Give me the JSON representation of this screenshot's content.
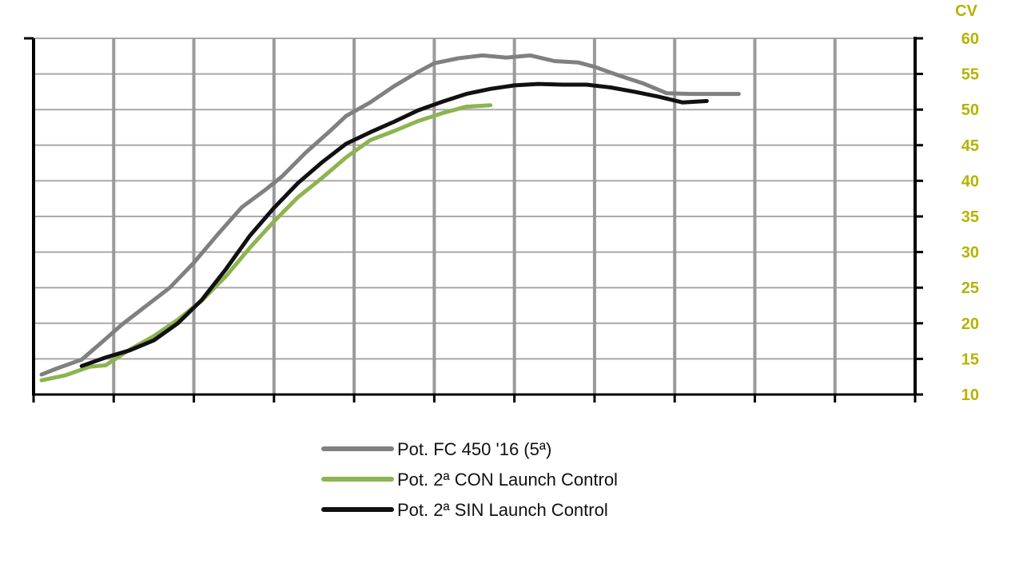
{
  "chart_data": {
    "type": "line",
    "title": "",
    "xlabel": "",
    "ylabel": "CV",
    "y_axis_side": "right",
    "ylim": [
      10,
      60
    ],
    "xlim": [
      0,
      11
    ],
    "yticks": [
      10,
      15,
      20,
      25,
      30,
      35,
      40,
      45,
      50,
      55,
      60
    ],
    "x_gridlines": 11,
    "grid": true,
    "legend_position": "bottom-center",
    "tick_label_color": "#b5b300",
    "series": [
      {
        "name": "Pot. FC 450 '16 (5ª)",
        "color": "#808080",
        "x": [
          0.1,
          0.3,
          0.6,
          0.9,
          1.1,
          1.4,
          1.7,
          2.0,
          2.3,
          2.6,
          2.9,
          3.1,
          3.4,
          3.7,
          3.9,
          4.2,
          4.5,
          4.8,
          5.0,
          5.3,
          5.6,
          5.9,
          6.2,
          6.5,
          6.8,
          7.0,
          7.3,
          7.6,
          7.9,
          8.2,
          8.5,
          8.8
        ],
        "y": [
          12.8,
          13.7,
          14.9,
          17.8,
          19.8,
          22.4,
          25.0,
          28.5,
          32.5,
          36.3,
          38.8,
          40.6,
          44.0,
          47.0,
          49.1,
          51.0,
          53.3,
          55.3,
          56.5,
          57.2,
          57.6,
          57.3,
          57.6,
          56.8,
          56.6,
          56.0,
          54.8,
          53.7,
          52.3,
          52.2,
          52.2,
          52.2
        ]
      },
      {
        "name": "Pot. 2ª CON Launch Control",
        "color": "#8cb450",
        "x": [
          0.1,
          0.4,
          0.7,
          0.9,
          1.2,
          1.5,
          1.8,
          2.1,
          2.4,
          2.7,
          3.0,
          3.3,
          3.6,
          3.9,
          4.2,
          4.5,
          4.8,
          5.1,
          5.4,
          5.7
        ],
        "y": [
          12.0,
          12.7,
          13.9,
          14.1,
          16.3,
          18.2,
          20.5,
          23.2,
          26.6,
          30.6,
          34.3,
          37.7,
          40.4,
          43.3,
          45.7,
          47.0,
          48.4,
          49.5,
          50.4,
          50.6
        ]
      },
      {
        "name": "Pot. 2ª SIN Launch Control",
        "color": "#111111",
        "x": [
          0.6,
          0.9,
          1.2,
          1.5,
          1.8,
          2.1,
          2.4,
          2.7,
          3.0,
          3.3,
          3.6,
          3.9,
          4.2,
          4.5,
          4.8,
          5.1,
          5.4,
          5.7,
          6.0,
          6.3,
          6.6,
          6.9,
          7.2,
          7.5,
          7.8,
          8.1,
          8.4
        ],
        "y": [
          14.0,
          15.2,
          16.2,
          17.6,
          20.0,
          23.3,
          27.6,
          32.3,
          36.2,
          39.7,
          42.6,
          45.2,
          46.8,
          48.3,
          49.9,
          51.1,
          52.2,
          52.9,
          53.4,
          53.6,
          53.5,
          53.5,
          53.1,
          52.5,
          51.8,
          51.0,
          51.2
        ]
      }
    ]
  }
}
